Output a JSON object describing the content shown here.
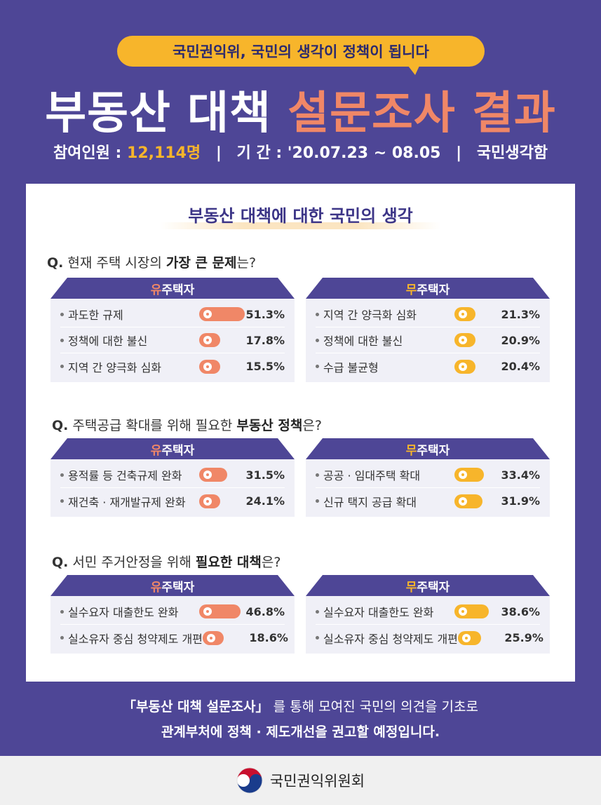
{
  "header": {
    "pill_text": "국민권익위, 국민의 생각이 정책이 됩니다",
    "title_main": "부동산 대책 ",
    "title_accent": "설문조사 결과",
    "participants_label": "참여인원 : ",
    "participants_value": "12,114명",
    "sep1": "|",
    "period_label": "기 간 : '20.07.23 ~ 08.05",
    "sep2": "|",
    "source": "국민생각함"
  },
  "card": {
    "heading": "부동산 대책에 대한 국민의 생각",
    "owner_prefix": "유",
    "nonowner_prefix": "무",
    "head_suffix": "주택자",
    "questions": [
      {
        "q_prefix": "Q.",
        "q_text_1": " 현재 주택 시장의 ",
        "q_bold": "가장 큰 문제",
        "q_text_2": "는?",
        "owner": [
          {
            "label": "과도한 규제",
            "pct": "51.3%",
            "value": 51.3
          },
          {
            "label": "정책에 대한 불신",
            "pct": "17.8%",
            "value": 17.8
          },
          {
            "label": "지역 간 양극화 심화",
            "pct": "15.5%",
            "value": 15.5
          }
        ],
        "nonowner": [
          {
            "label": "지역 간 양극화 심화",
            "pct": "21.3%",
            "value": 21.3
          },
          {
            "label": "정책에 대한 불신",
            "pct": "20.9%",
            "value": 20.9
          },
          {
            "label": "수급 불균형",
            "pct": "20.4%",
            "value": 20.4
          }
        ]
      },
      {
        "q_prefix": "Q.",
        "q_text_1": " 주택공급 확대를 위해 필요한 ",
        "q_bold": "부동산 정책",
        "q_text_2": "은?",
        "owner": [
          {
            "label": "용적률 등 건축규제 완화",
            "pct": "31.5%",
            "value": 31.5
          },
          {
            "label": "재건축 · 재개발규제 완화",
            "pct": "24.1%",
            "value": 24.1
          }
        ],
        "nonowner": [
          {
            "label": "공공 · 임대주택 확대",
            "pct": "33.4%",
            "value": 33.4
          },
          {
            "label": "신규 택지 공급 확대",
            "pct": "31.9%",
            "value": 31.9
          }
        ]
      },
      {
        "q_prefix": "Q.",
        "q_text_1": " 서민 주거안정을 위해 ",
        "q_bold": "필요한 대책",
        "q_text_2": "은?",
        "owner": [
          {
            "label": "실수요자 대출한도 완화",
            "pct": "46.8%",
            "value": 46.8
          },
          {
            "label": "실소유자 중심 청약제도 개편",
            "pct": "18.6%",
            "value": 18.6
          }
        ],
        "nonowner": [
          {
            "label": "실수요자 대출한도 완화",
            "pct": "38.6%",
            "value": 38.6
          },
          {
            "label": "실소유자 중심 청약제도 개편",
            "pct": "25.9%",
            "value": 25.9
          }
        ]
      }
    ]
  },
  "footer": {
    "line1_bold": "「부동산 대책 설문조사」",
    "line1_rest": "를 통해 모여진 국민의 의견을 기초로",
    "line2": "관계부처에 정책 · 제도개선을 권고할 예정입니다.",
    "org": "국민권익위원회"
  },
  "colors": {
    "background": "#4e4696",
    "owner_accent": "#f08767",
    "nonowner_accent": "#f7b52b"
  }
}
